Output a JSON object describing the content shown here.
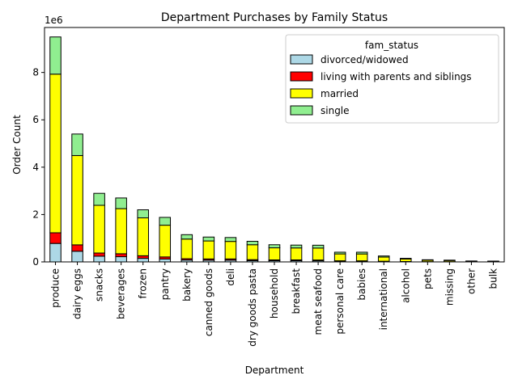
{
  "chart_data": {
    "type": "bar",
    "stacked": true,
    "title": "Department Purchases by Family Status",
    "xlabel": "Department",
    "ylabel": "Order Count",
    "y_multiplier": "1e6",
    "ylim": [
      0,
      9900000
    ],
    "yticks": [
      0,
      2,
      4,
      6,
      8
    ],
    "grid": false,
    "categories": [
      "produce",
      "dairy eggs",
      "snacks",
      "beverages",
      "frozen",
      "pantry",
      "bakery",
      "canned goods",
      "deli",
      "dry goods pasta",
      "household",
      "breakfast",
      "meat seafood",
      "personal care",
      "babies",
      "international",
      "alcohol",
      "pets",
      "missing",
      "other",
      "bulk"
    ],
    "legend": {
      "title": "fam_status",
      "position": "upper right"
    },
    "series": [
      {
        "name": "divorced/widowed",
        "color": "#add8e6",
        "values": [
          780000,
          450000,
          240000,
          220000,
          150000,
          120000,
          80000,
          75000,
          75000,
          55000,
          50000,
          50000,
          48000,
          28000,
          28000,
          17000,
          10000,
          6000,
          5000,
          3000,
          2500
        ]
      },
      {
        "name": "living with parents and siblings",
        "color": "#ff0000",
        "values": [
          450000,
          270000,
          135000,
          125000,
          110000,
          90000,
          55000,
          50000,
          50000,
          40000,
          35000,
          35000,
          32000,
          20000,
          18000,
          12000,
          7000,
          4000,
          3500,
          2000,
          1500
        ]
      },
      {
        "name": "married",
        "color": "#ffff00",
        "values": [
          6700000,
          3770000,
          2015000,
          1905000,
          1600000,
          1340000,
          830000,
          760000,
          740000,
          630000,
          510000,
          505000,
          505000,
          290000,
          290000,
          175000,
          103000,
          63000,
          51000,
          28000,
          25000
        ]
      },
      {
        "name": "single",
        "color": "#90ee90",
        "values": [
          1570000,
          910000,
          505000,
          450000,
          340000,
          330000,
          185000,
          165000,
          165000,
          145000,
          130000,
          120000,
          120000,
          72000,
          74000,
          46000,
          30000,
          17000,
          15000,
          7000,
          6000
        ]
      }
    ]
  }
}
